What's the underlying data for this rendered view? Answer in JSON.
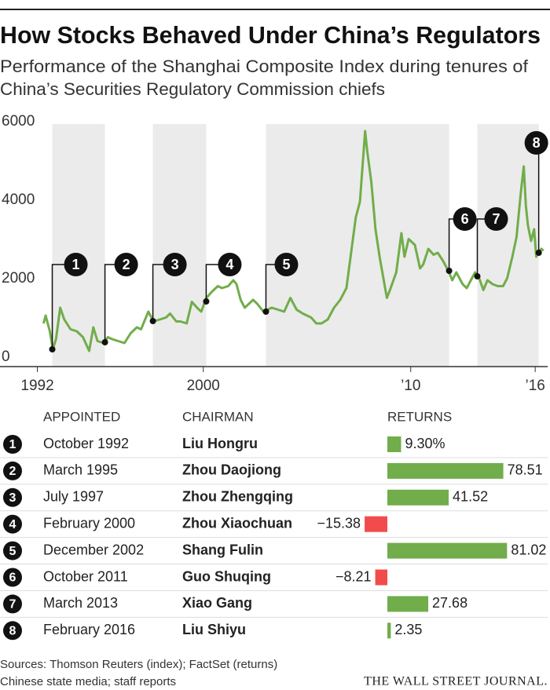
{
  "title": "How Stocks Behaved Under China’s Regulators",
  "subtitle": [
    "Performance of the Shanghai Composite Index during tenures of",
    "China’s Securities Regulatory Commission chiefs"
  ],
  "sources": [
    "Sources: Thomson Reuters (index); FactSet (returns)",
    "Chinese state media; staff reports"
  ],
  "publisher": "THE WALL STREET JOURNAL.",
  "chart_data": [
    {
      "type": "line",
      "x": [
        1992.3,
        1992.4,
        1992.6,
        1992.75,
        1992.9,
        1993.1,
        1993.3,
        1993.6,
        1993.9,
        1994.2,
        1994.5,
        1994.7,
        1994.9,
        1995.2,
        1995.4,
        1995.6,
        1995.9,
        1996.2,
        1996.5,
        1996.8,
        1997.0,
        1997.35,
        1997.6,
        1997.9,
        1998.2,
        1998.4,
        1998.7,
        1998.9,
        1999.2,
        1999.45,
        1999.7,
        1999.9,
        2000.15,
        2000.4,
        2000.7,
        2000.9,
        2001.2,
        2001.45,
        2001.6,
        2001.8,
        2002.0,
        2002.4,
        2002.6,
        2002.9,
        2003.3,
        2003.6,
        2003.9,
        2004.2,
        2004.5,
        2004.8,
        2005.2,
        2005.45,
        2005.7,
        2006.0,
        2006.3,
        2006.6,
        2006.9,
        2007.1,
        2007.35,
        2007.55,
        2007.8,
        2007.9,
        2008.1,
        2008.3,
        2008.5,
        2008.7,
        2008.85,
        2009.0,
        2009.3,
        2009.55,
        2009.7,
        2009.9,
        2010.2,
        2010.45,
        2010.6,
        2010.85,
        2011.1,
        2011.3,
        2011.55,
        2011.85,
        2012.0,
        2012.2,
        2012.5,
        2012.7,
        2012.95,
        2013.1,
        2013.3,
        2013.5,
        2013.7,
        2013.95,
        2014.2,
        2014.45,
        2014.65,
        2014.9,
        2015.1,
        2015.3,
        2015.45,
        2015.55,
        2015.65,
        2015.8,
        2015.95,
        2016.05,
        2016.15,
        2016.3,
        2016.4
      ],
      "series": [
        {
          "color": "#71ad4a",
          "values": [
            1100,
            1300,
            900,
            450,
            700,
            1500,
            1200,
            950,
            900,
            750,
            400,
            1000,
            650,
            600,
            750,
            700,
            650,
            600,
            850,
            1000,
            950,
            1400,
            1150,
            1200,
            1250,
            1350,
            1150,
            1150,
            1100,
            1650,
            1500,
            1400,
            1750,
            1900,
            2050,
            2000,
            2050,
            2200,
            2100,
            1700,
            1500,
            1700,
            1600,
            1400,
            1500,
            1450,
            1400,
            1750,
            1450,
            1350,
            1250,
            1100,
            1100,
            1200,
            1500,
            1700,
            2000,
            2800,
            3800,
            4200,
            6000,
            5500,
            4700,
            3500,
            2800,
            2200,
            1750,
            1950,
            2400,
            3400,
            2800,
            3250,
            3100,
            2500,
            2600,
            3000,
            2850,
            2900,
            2700,
            2400,
            2200,
            2400,
            2100,
            2000,
            2250,
            2400,
            2250,
            1950,
            2200,
            2100,
            2050,
            2050,
            2250,
            2800,
            3300,
            4400,
            5100,
            4100,
            3600,
            3200,
            3500,
            2800,
            2900,
            3000,
            2950
          ]
        }
      ],
      "xlim": [
        1990.2,
        2016.6
      ],
      "ylim": [
        0,
        6000
      ],
      "xticks": [
        1992,
        2000,
        {
          "value": 2010,
          "label": "’10"
        },
        {
          "value": 2016,
          "label": "’16"
        }
      ],
      "yticks": [
        0,
        2000,
        4000,
        6000
      ],
      "grid": false,
      "band_color": "#ebebeb",
      "events": {
        "x": [
          1992.72,
          1995.26,
          1997.57,
          2000.14,
          2003.02,
          2011.85,
          2013.21,
          2016.17
        ],
        "y": [
          440,
          620,
          1160,
          1660,
          1400,
          2440,
          2300,
          2900
        ],
        "labels": [
          "1",
          "2",
          "3",
          "4",
          "5",
          "6",
          "7",
          "8"
        ]
      }
    },
    {
      "type": "bar",
      "columns": [
        "APPOINTED",
        "CHAIRMAN",
        "RETURNS"
      ],
      "markers": [
        "1",
        "2",
        "3",
        "4",
        "5",
        "6",
        "7",
        "8"
      ],
      "dates": [
        "October 1992",
        "March 1995",
        "July 1997",
        "February 2000",
        "December 2002",
        "October 2011",
        "March 2013",
        "February 2016"
      ],
      "categories": [
        "Liu Hongru",
        "Zhou Daojiong",
        "Zhou Zhengqing",
        "Zhou Xiaochuan",
        "Shang Fulin",
        "Guo Shuqing",
        "Xiao Gang",
        "Liu Shiyu"
      ],
      "values": [
        9.3,
        78.51,
        41.52,
        -15.38,
        81.02,
        -8.21,
        27.68,
        2.35
      ],
      "value_labels": [
        "9.30%",
        "78.51",
        "41.52",
        "−15.38",
        "81.02",
        "−8.21",
        "27.68",
        "2.35"
      ],
      "color": "#71ad4a",
      "negative_color": "#f24b4b"
    }
  ]
}
